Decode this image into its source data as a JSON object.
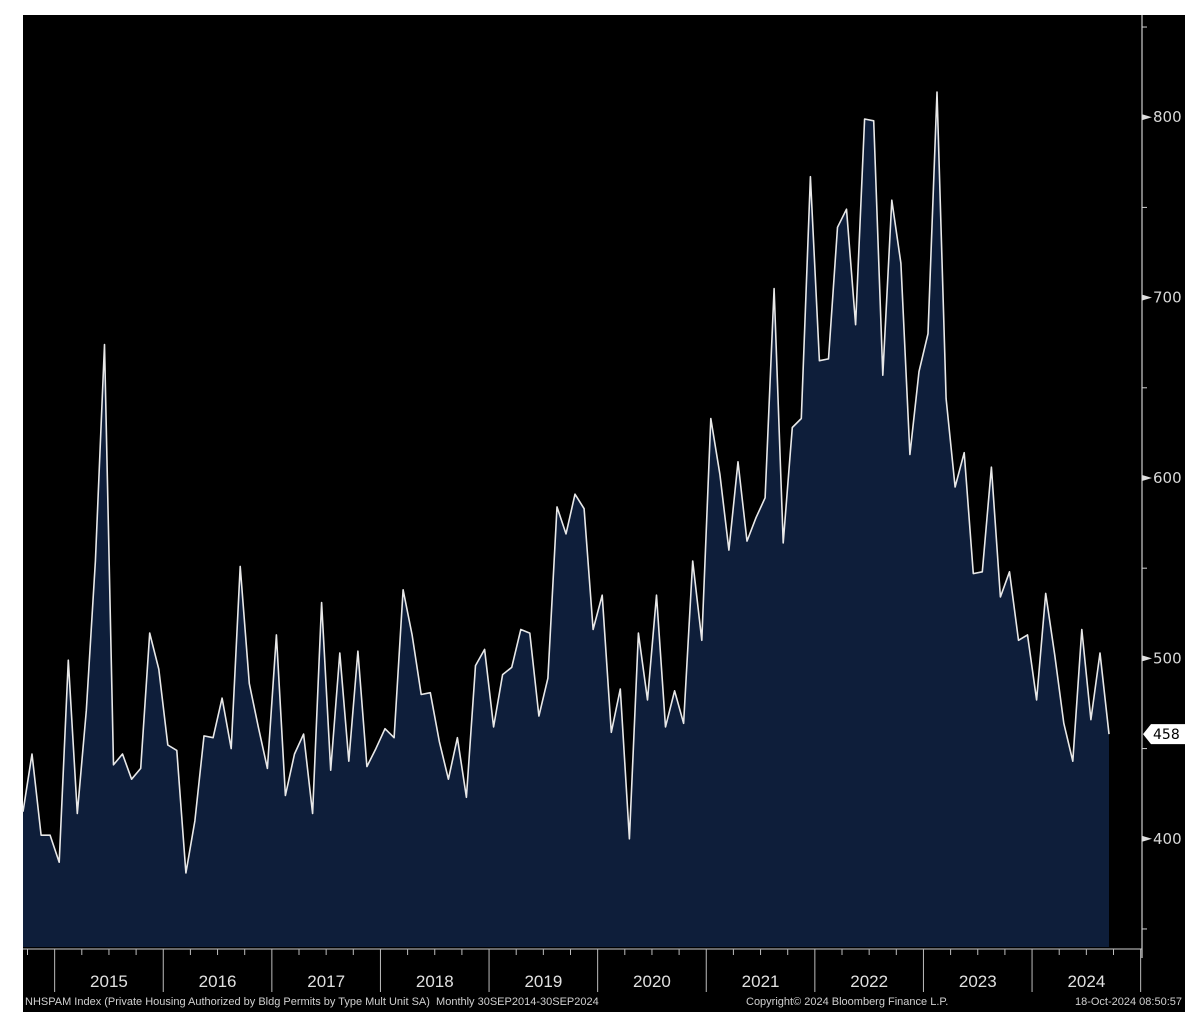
{
  "chart_data": {
    "type": "area",
    "title": "NHSPAM Index (Private Housing Authorized by Bldg Permits by Type Mult Unit SA)",
    "frequency": "Monthly 30SEP2014-30SEP2024",
    "start": "2014-09",
    "end": "2024-09",
    "xlabel": "",
    "ylabel": "",
    "ylim": [
      340,
      855
    ],
    "yticks": [
      400,
      500,
      600,
      700,
      800
    ],
    "ytick_labels": [
      "400",
      "500",
      "600",
      "700",
      "800"
    ],
    "xtick_labels": [
      "2015",
      "2016",
      "2017",
      "2018",
      "2019",
      "2020",
      "2021",
      "2022",
      "2023",
      "2024"
    ],
    "last_value_label": "458",
    "grid": false,
    "colors": {
      "line": "#e8e8e8",
      "fill": "#0e1e3a",
      "background": "#000000"
    },
    "series": [
      {
        "name": "NHSPAM Index",
        "values": [
          415,
          447,
          402,
          402,
          387,
          499,
          414,
          471,
          554,
          674,
          441,
          447,
          433,
          439,
          514,
          494,
          452,
          449,
          381,
          410,
          457,
          456,
          478,
          450,
          551,
          486,
          462,
          439,
          513,
          424,
          447,
          458,
          414,
          531,
          438,
          503,
          443,
          504,
          440,
          450,
          461,
          456,
          538,
          513,
          480,
          481,
          454,
          433,
          456,
          423,
          496,
          505,
          462,
          491,
          495,
          516,
          514,
          468,
          489,
          584,
          569,
          591,
          583,
          516,
          535,
          459,
          483,
          400,
          514,
          477,
          535,
          462,
          482,
          464,
          554,
          510,
          633,
          602,
          560,
          609,
          565,
          578,
          589,
          705,
          564,
          628,
          633,
          767,
          665,
          666,
          739,
          749,
          685,
          799,
          798,
          657,
          754,
          719,
          613,
          659,
          680,
          814,
          644,
          595,
          614,
          547,
          548,
          606,
          534,
          548,
          510,
          513,
          477,
          536,
          502,
          464,
          443,
          516,
          466,
          503,
          458
        ]
      }
    ]
  },
  "footer": {
    "description": "NHSPAM Index (Private Housing Authorized by Bldg Permits by Type Mult Unit SA)  Monthly 30SEP2014-30SEP2024",
    "copyright": "Copyright© 2024 Bloomberg Finance L.P.",
    "timestamp": "18-Oct-2024 08:50:57"
  }
}
